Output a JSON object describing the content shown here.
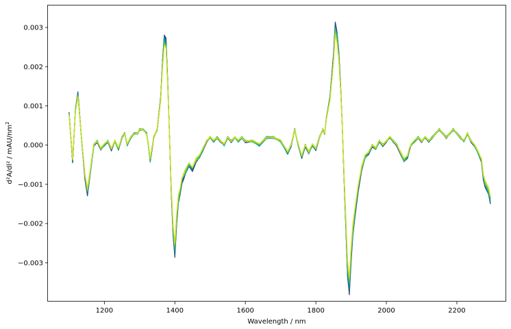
{
  "chart_data": {
    "type": "line",
    "title": "",
    "xlabel": "Wavelength / nm",
    "ylabel_main": "d²A/dl² / mAU/nm",
    "ylabel_sup": "2",
    "xlim": [
      1040,
      2340
    ],
    "ylim": [
      -0.00399,
      0.00356
    ],
    "xticks": [
      1200,
      1400,
      1600,
      1800,
      2000,
      2200
    ],
    "xtick_labels": [
      "1200",
      "1400",
      "1600",
      "1800",
      "2000",
      "2200"
    ],
    "yticks": [
      -0.003,
      -0.002,
      -0.001,
      0.0,
      0.001,
      0.002,
      0.003
    ],
    "ytick_labels": [
      "−0.003",
      "−0.002",
      "−0.001",
      "0.000",
      "0.001",
      "0.002",
      "0.003"
    ],
    "grid": false,
    "legend": "none",
    "colormap": [
      "#2c3e7a",
      "#23578c",
      "#1f6f8b",
      "#1e8a8a",
      "#22a884",
      "#3fbc73",
      "#6ccd5a",
      "#a2da37",
      "#d7e219"
    ],
    "base_curve": {
      "x": [
        1100,
        1105,
        1110,
        1118,
        1125,
        1135,
        1145,
        1152,
        1160,
        1170,
        1180,
        1190,
        1200,
        1210,
        1220,
        1230,
        1240,
        1250,
        1258,
        1265,
        1275,
        1285,
        1295,
        1300,
        1310,
        1320,
        1325,
        1330,
        1335,
        1340,
        1350,
        1360,
        1365,
        1370,
        1375,
        1380,
        1385,
        1390,
        1395,
        1400,
        1405,
        1410,
        1415,
        1420,
        1425,
        1430,
        1440,
        1450,
        1460,
        1470,
        1480,
        1490,
        1500,
        1510,
        1520,
        1530,
        1540,
        1550,
        1560,
        1570,
        1580,
        1590,
        1600,
        1620,
        1640,
        1660,
        1680,
        1700,
        1720,
        1730,
        1740,
        1750,
        1760,
        1770,
        1780,
        1790,
        1800,
        1810,
        1820,
        1825,
        1830,
        1840,
        1850,
        1855,
        1860,
        1865,
        1870,
        1875,
        1880,
        1885,
        1890,
        1895,
        1900,
        1905,
        1910,
        1920,
        1930,
        1940,
        1950,
        1960,
        1970,
        1980,
        1990,
        2000,
        2010,
        2020,
        2030,
        2040,
        2050,
        2060,
        2065,
        2070,
        2080,
        2090,
        2100,
        2110,
        2120,
        2130,
        2140,
        2150,
        2160,
        2170,
        2180,
        2190,
        2200,
        2210,
        2220,
        2230,
        2240,
        2250,
        2260,
        2270,
        2275,
        2280,
        2290,
        2295
      ],
      "y": [
        0.0008,
        0.0002,
        -0.0004,
        0.0009,
        0.0013,
        0.0002,
        -0.0008,
        -0.0012,
        -0.0007,
        0.0,
        0.0001,
        -0.0001,
        0.0,
        0.0001,
        -0.0001,
        0.0001,
        -0.0001,
        0.0002,
        0.0003,
        0.0,
        0.0002,
        0.0003,
        0.0003,
        0.0004,
        0.0004,
        0.0003,
        0.0,
        -0.0004,
        -0.0001,
        0.0002,
        0.0004,
        0.0012,
        0.0021,
        0.0027,
        0.0026,
        0.0015,
        0.0002,
        -0.0012,
        -0.0022,
        -0.0027,
        -0.0019,
        -0.0014,
        -0.0012,
        -0.0009,
        -0.0008,
        -0.0007,
        -0.0005,
        -0.0006,
        -0.0004,
        -0.0003,
        -0.0001,
        0.0001,
        0.0002,
        0.0001,
        0.0002,
        0.0001,
        0.0,
        0.0002,
        0.0001,
        0.0002,
        0.0001,
        0.0002,
        0.0001,
        0.0001,
        0.0,
        0.0002,
        0.0002,
        0.0001,
        -0.0002,
        0.0,
        0.0004,
        0.0,
        -0.0003,
        0.0,
        -0.0002,
        0.0,
        -0.0001,
        0.0002,
        0.0004,
        0.0003,
        0.0007,
        0.0012,
        0.0022,
        0.003,
        0.0028,
        0.0023,
        0.0015,
        0.0005,
        -0.0008,
        -0.002,
        -0.0032,
        -0.0036,
        -0.0028,
        -0.0022,
        -0.0018,
        -0.0011,
        -0.0006,
        -0.0003,
        -0.0002,
        0.0,
        -0.0001,
        0.0001,
        0.0,
        0.0001,
        0.0002,
        0.0001,
        0.0,
        -0.0002,
        -0.0004,
        -0.0003,
        -0.0001,
        0.0,
        0.0001,
        0.0002,
        0.0001,
        0.0002,
        0.0001,
        0.0002,
        0.0003,
        0.0004,
        0.0003,
        0.0002,
        0.0003,
        0.0004,
        0.0003,
        0.0002,
        0.0001,
        0.0003,
        0.0001,
        0.0,
        -0.0002,
        -0.0004,
        -0.0008,
        -0.001,
        -0.0012,
        -0.0014
      ]
    },
    "series_count": 9
  }
}
